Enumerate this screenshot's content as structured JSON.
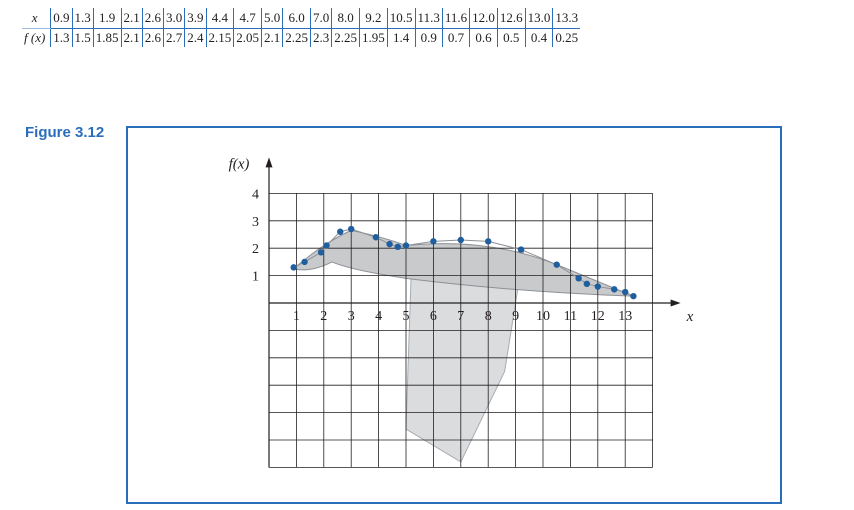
{
  "table": {
    "x_header": "x",
    "fx_header": "f (x)",
    "x_values": [
      "0.9",
      "1.3",
      "1.9",
      "2.1",
      "2.6",
      "3.0",
      "3.9",
      "4.4",
      "4.7",
      "5.0",
      "6.0",
      "7.0",
      "8.0",
      "9.2",
      "10.5",
      "11.3",
      "11.6",
      "12.0",
      "12.6",
      "13.0",
      "13.3"
    ],
    "fx_values": [
      "1.3",
      "1.5",
      "1.85",
      "2.1",
      "2.6",
      "2.7",
      "2.4",
      "2.15",
      "2.05",
      "2.1",
      "2.25",
      "2.3",
      "2.25",
      "1.95",
      "1.4",
      "0.9",
      "0.7",
      "0.6",
      "0.5",
      "0.4",
      "0.25"
    ]
  },
  "figure_label": "Figure 3.12",
  "chart_data": {
    "type": "scatter",
    "title": "",
    "xlabel": "x",
    "ylabel": "f(x)",
    "xlim": [
      0,
      14
    ],
    "ylim": [
      -6,
      4
    ],
    "x_ticks": [
      1,
      2,
      3,
      4,
      5,
      6,
      7,
      8,
      9,
      10,
      11,
      12,
      13
    ],
    "y_ticks": [
      1,
      2,
      3,
      4
    ],
    "grid": true,
    "point_color": "#1f5f9e",
    "grid_color": "#231f20",
    "background_image": "goose-silhouette",
    "series": [
      {
        "x": [
          0.9,
          1.3,
          1.9,
          2.1,
          2.6,
          3.0,
          3.9,
          4.4,
          4.7,
          5.0,
          6.0,
          7.0,
          8.0,
          9.2,
          10.5,
          11.3,
          11.6,
          12.0,
          12.6,
          13.0,
          13.3
        ],
        "y": [
          1.3,
          1.5,
          1.85,
          2.1,
          2.6,
          2.7,
          2.4,
          2.15,
          2.05,
          2.1,
          2.25,
          2.3,
          2.25,
          1.95,
          1.4,
          0.9,
          0.7,
          0.6,
          0.5,
          0.4,
          0.25
        ]
      }
    ]
  }
}
